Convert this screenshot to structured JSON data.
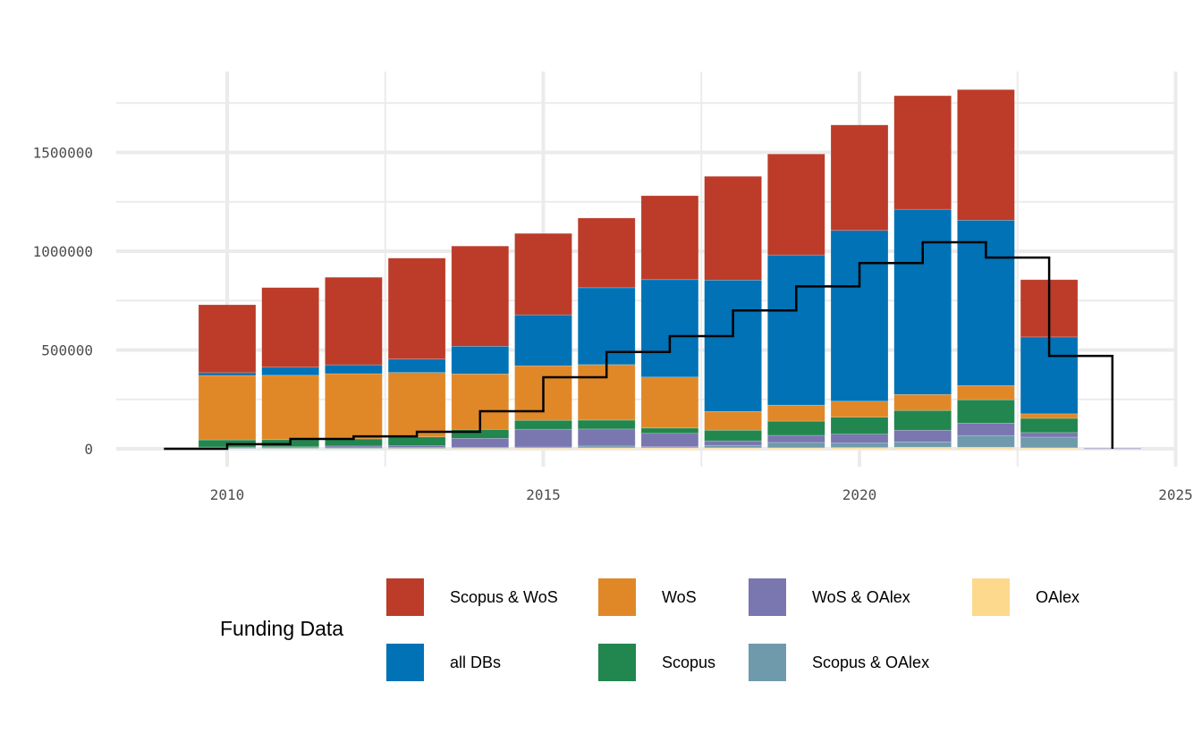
{
  "chart_data": {
    "type": "bar",
    "stacked": true,
    "title": "",
    "xlabel": "",
    "ylabel": "",
    "xlim": [
      2008.2,
      2025.1
    ],
    "ylim": [
      -40000,
      1920000
    ],
    "grid": true,
    "x_ticks": [
      2010,
      2015,
      2020,
      2025
    ],
    "y_ticks": [
      0,
      500000,
      1000000,
      1500000
    ],
    "x_tick_labels": [
      "2010",
      "2015",
      "2020",
      "2025"
    ],
    "y_tick_labels": [
      "0",
      "500000",
      "1000000",
      "1500000"
    ],
    "categories": [
      2010,
      2011,
      2012,
      2013,
      2014,
      2015,
      2016,
      2017,
      2018,
      2019,
      2020,
      2021,
      2022,
      2023,
      2024
    ],
    "series": [
      {
        "name": "OAlex",
        "color": "#fdd98e",
        "values": [
          2000,
          2000,
          2000,
          2000,
          3000,
          4000,
          5000,
          5000,
          5000,
          5000,
          6000,
          8000,
          8000,
          5000,
          0
        ]
      },
      {
        "name": "Scopus & OAlex",
        "color": "#6f9aac",
        "values": [
          2000,
          3000,
          3000,
          4000,
          5000,
          5000,
          9000,
          5000,
          12000,
          27000,
          23000,
          27000,
          59000,
          54000,
          2000
        ]
      },
      {
        "name": "WoS & OAlex",
        "color": "#7a76b0",
        "values": [
          5000,
          5000,
          9000,
          9000,
          45000,
          90000,
          86000,
          68000,
          23000,
          36000,
          45000,
          59000,
          63000,
          23000,
          1000
        ]
      },
      {
        "name": "Scopus",
        "color": "#22864f",
        "values": [
          36000,
          36000,
          36000,
          45000,
          45000,
          45000,
          45000,
          27000,
          54000,
          72000,
          86000,
          100000,
          118000,
          72000,
          0
        ]
      },
      {
        "name": "WoS",
        "color": "#e08828",
        "values": [
          326000,
          326000,
          330000,
          326000,
          281000,
          276000,
          281000,
          258000,
          95000,
          81000,
          81000,
          81000,
          72000,
          23000,
          0
        ]
      },
      {
        "name": "all DBs",
        "color": "#0072b5",
        "values": [
          14000,
          41000,
          45000,
          68000,
          140000,
          258000,
          389000,
          493000,
          665000,
          760000,
          864000,
          937000,
          837000,
          389000,
          0
        ]
      },
      {
        "name": "Scopus & WoS",
        "color": "#bc3c29",
        "values": [
          344000,
          403000,
          443000,
          511000,
          507000,
          412000,
          353000,
          425000,
          525000,
          511000,
          534000,
          575000,
          661000,
          290000,
          0
        ]
      }
    ],
    "step_line": {
      "name": "",
      "color": "#000000",
      "x": [
        2009,
        2010,
        2011,
        2012,
        2013,
        2014,
        2015,
        2016,
        2017,
        2018,
        2019,
        2020,
        2021,
        2022,
        2023,
        2024
      ],
      "values": [
        0,
        23000,
        50000,
        63000,
        86000,
        190000,
        362000,
        490000,
        570000,
        700000,
        822000,
        940000,
        1045000,
        968000,
        470000,
        0
      ]
    },
    "legend": {
      "title": "Funding Data",
      "position": "bottom",
      "entries": [
        "Scopus & WoS",
        "all DBs",
        "WoS",
        "Scopus",
        "WoS & OAlex",
        "Scopus & OAlex",
        "OAlex"
      ]
    }
  }
}
